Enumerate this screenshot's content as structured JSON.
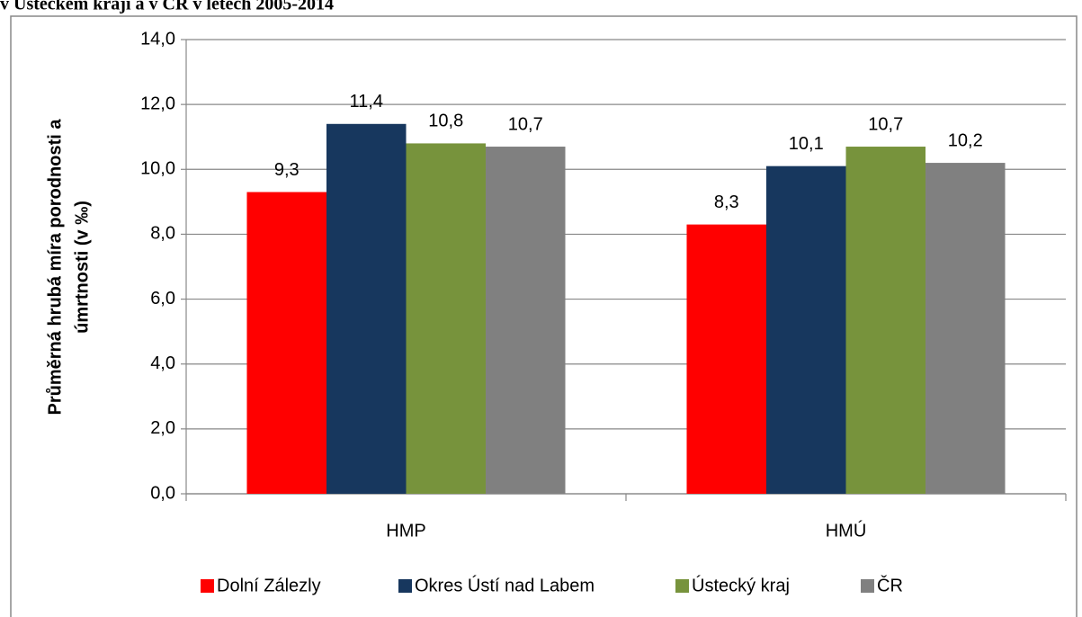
{
  "chart_data": {
    "type": "bar",
    "title": "v Ústeckém kraji a v ČR v letech 2005-2014",
    "ylabel": [
      "Průměrná hrubá míra porodnosti a",
      "úmrtnosti (v ‰)"
    ],
    "categories": [
      "HMP",
      "HMÚ"
    ],
    "series": [
      {
        "name": "Dolní Zálezly",
        "color": "#ff0000",
        "values": [
          9.3,
          8.3
        ],
        "value_labels": [
          "9,3",
          "8,3"
        ]
      },
      {
        "name": "Okres Ústí nad Labem",
        "color": "#17375e",
        "values": [
          11.4,
          10.1
        ],
        "value_labels": [
          "11,4",
          "10,1"
        ]
      },
      {
        "name": "Ústecký kraj",
        "color": "#77933c",
        "values": [
          10.8,
          10.7
        ],
        "value_labels": [
          "10,8",
          "10,7"
        ]
      },
      {
        "name": "ČR",
        "color": "#808080",
        "values": [
          10.7,
          10.2
        ],
        "value_labels": [
          "10,7",
          "10,2"
        ]
      }
    ],
    "ylim": [
      0,
      14
    ],
    "yticks": [
      {
        "value": 0,
        "label": "0,0"
      },
      {
        "value": 2,
        "label": "2,0"
      },
      {
        "value": 4,
        "label": "4,0"
      },
      {
        "value": 6,
        "label": "6,0"
      },
      {
        "value": 8,
        "label": "8,0"
      },
      {
        "value": 10,
        "label": "10,0"
      },
      {
        "value": 12,
        "label": "12,0"
      },
      {
        "value": 14,
        "label": "14,0"
      }
    ],
    "grid": true,
    "legend": "bottom"
  }
}
